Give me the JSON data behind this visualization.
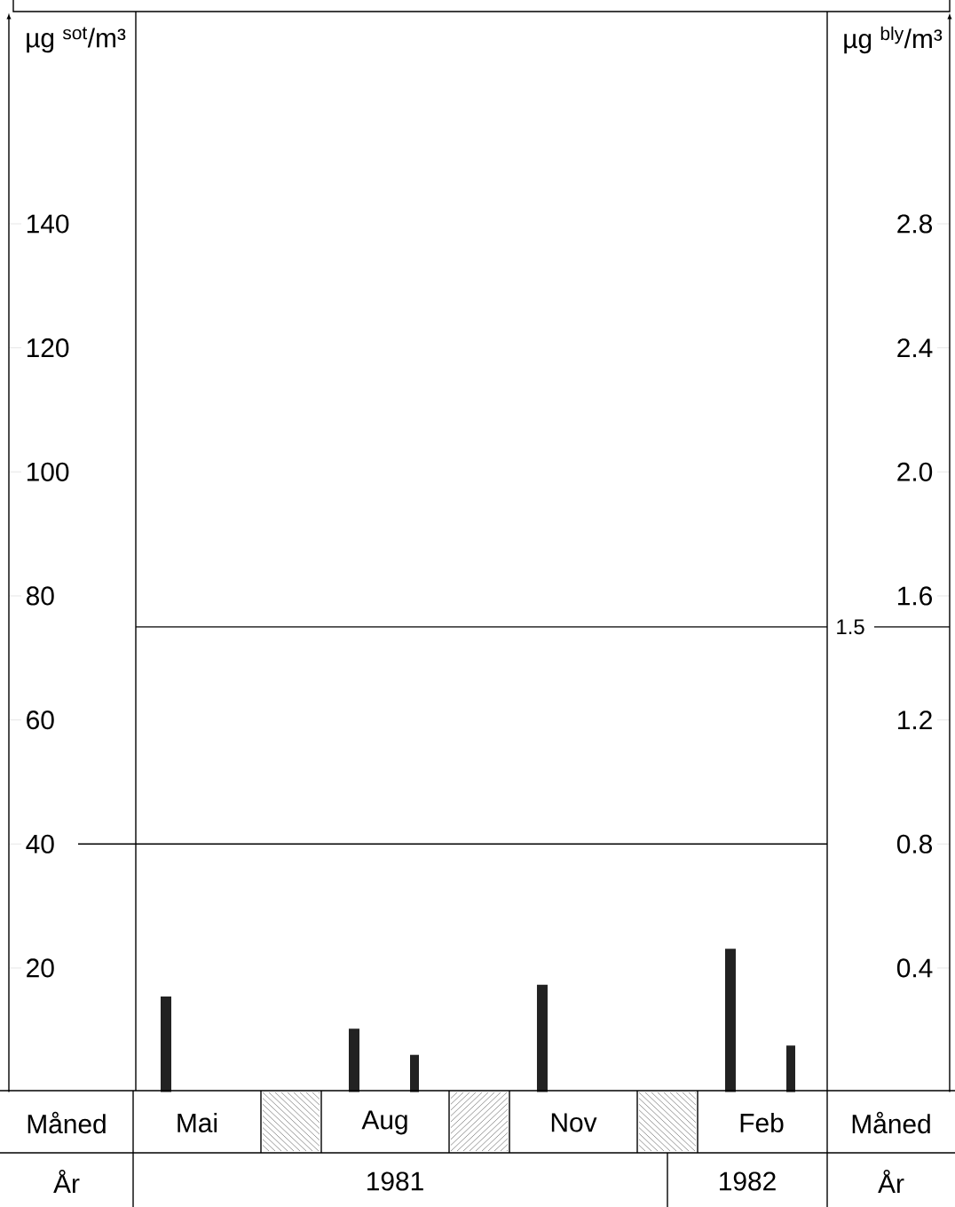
{
  "chart_data": {
    "type": "bar",
    "ylabel": "µg $^{sot}$/m³",
    "y2label": "µg $^{bly}$/m³",
    "categories": [
      "Mai",
      "Aug",
      "Nov",
      "Feb"
    ],
    "series": [
      {
        "color": "#222222",
        "values": [
          15.4,
          10.2,
          17.3,
          23.1
        ]
      },
      {
        "color": "#222222",
        "values": [
          null,
          0.12,
          null,
          0.15
        ],
        "axis": "y2"
      }
    ],
    "ylim": [
      0,
      174
    ],
    "yticks": [
      20,
      40,
      60,
      80,
      100,
      120,
      140
    ],
    "y2lim": [
      0,
      3.48
    ],
    "y2ticks": [
      0.4,
      0.8,
      1.2,
      1.6,
      {
        "value": 2.0,
        "label": "2.0"
      },
      2.4,
      2.8
    ],
    "ref_lines": [
      {
        "axis": "y",
        "value": 40
      },
      {
        "axis": "y2",
        "value": 1.5,
        "label": "1.5"
      }
    ],
    "annotations": [
      "Måned",
      "Måned",
      "År",
      "1981",
      "1982",
      "År"
    ]
  }
}
